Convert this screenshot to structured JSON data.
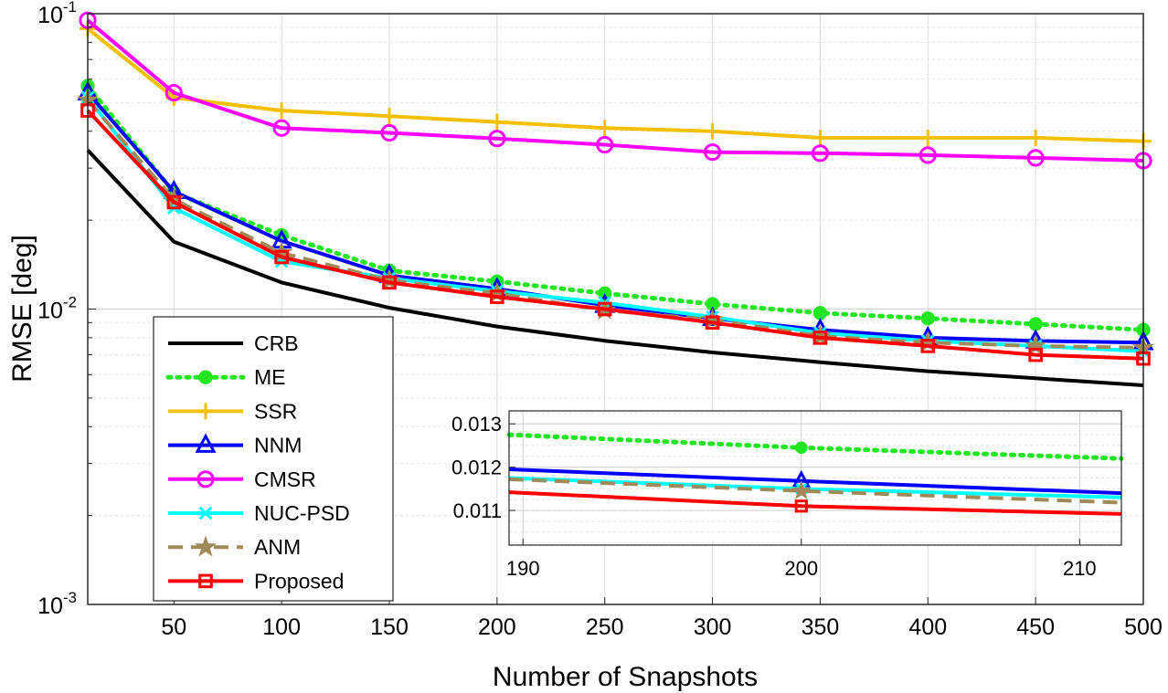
{
  "chart_data": {
    "type": "line",
    "title": "",
    "xlabel": "Number of Snapshots",
    "ylabel": "RMSE [deg]",
    "yscale": "log",
    "xlim": [
      10,
      500
    ],
    "ylim": [
      0.001,
      0.1
    ],
    "grid": true,
    "legend_position": "bottom-left",
    "x": [
      10,
      50,
      100,
      150,
      200,
      250,
      300,
      350,
      400,
      450,
      500
    ],
    "x_tick_labels": [
      "50",
      "100",
      "150",
      "200",
      "250",
      "300",
      "350",
      "400",
      "450",
      "500"
    ],
    "x_tick_values": [
      50,
      100,
      150,
      200,
      250,
      300,
      350,
      400,
      450,
      500
    ],
    "y_tick_labels": [
      {
        "base": "10",
        "exp": "-3",
        "value": 0.001
      },
      {
        "base": "10",
        "exp": "-2",
        "value": 0.01
      },
      {
        "base": "10",
        "exp": "-1",
        "value": 0.1
      }
    ],
    "series": [
      {
        "name": "CRB",
        "color": "#000000",
        "marker": "none",
        "dash": "solid",
        "values": [
          0.0345,
          0.0169,
          0.0123,
          0.0101,
          0.00873,
          0.00781,
          0.00713,
          0.00661,
          0.00616,
          0.00583,
          0.00552
        ]
      },
      {
        "name": "ME",
        "color": "#22e622",
        "marker": "dot",
        "dash": "dotted",
        "values": [
          0.057,
          0.0248,
          0.0178,
          0.0135,
          0.0124,
          0.0113,
          0.0104,
          0.0097,
          0.0093,
          0.0089,
          0.0085
        ]
      },
      {
        "name": "SSR",
        "color": "#f5c000",
        "marker": "plus",
        "dash": "solid",
        "values": [
          0.089,
          0.052,
          0.047,
          0.045,
          0.043,
          0.041,
          0.04,
          0.038,
          0.038,
          0.038,
          0.037
        ]
      },
      {
        "name": "NNM",
        "color": "#0000ff",
        "marker": "triangle",
        "dash": "solid",
        "values": [
          0.054,
          0.025,
          0.017,
          0.013,
          0.0117,
          0.0103,
          0.0093,
          0.0085,
          0.008,
          0.0078,
          0.0077
        ]
      },
      {
        "name": "CMSR",
        "color": "#ff00ff",
        "marker": "circle",
        "dash": "solid",
        "values": [
          0.095,
          0.054,
          0.041,
          0.0395,
          0.0378,
          0.036,
          0.034,
          0.0337,
          0.0332,
          0.0325,
          0.0318
        ]
      },
      {
        "name": "NUC-PSD",
        "color": "#00ffff",
        "marker": "x",
        "dash": "solid",
        "values": [
          0.052,
          0.022,
          0.0145,
          0.0127,
          0.0115,
          0.0105,
          0.0094,
          0.0083,
          0.0078,
          0.0075,
          0.0072
        ]
      },
      {
        "name": "ANM",
        "color": "#a08a5a",
        "marker": "star",
        "dash": "dashed",
        "values": [
          0.051,
          0.0235,
          0.0155,
          0.0125,
          0.0113,
          0.0099,
          0.0092,
          0.0081,
          0.0077,
          0.0075,
          0.0074
        ]
      },
      {
        "name": "Proposed",
        "color": "#ff0000",
        "marker": "square",
        "dash": "solid",
        "values": [
          0.047,
          0.023,
          0.015,
          0.0123,
          0.011,
          0.01,
          0.009,
          0.008,
          0.0075,
          0.007,
          0.0068
        ]
      }
    ],
    "inset": {
      "xlim": [
        189.5,
        211.5
      ],
      "ylim": [
        0.0102,
        0.0133
      ],
      "x_tick_values": [
        190,
        200,
        210
      ],
      "x_tick_labels": [
        "190",
        "200",
        "210"
      ],
      "y_tick_values": [
        0.011,
        0.012,
        0.013
      ],
      "y_tick_labels": [
        "0.011",
        "0.012",
        "0.013"
      ],
      "series": [
        {
          "name": "ME",
          "start": 0.01275,
          "mid": 0.01245,
          "end": 0.0122
        },
        {
          "name": "NNM",
          "start": 0.01195,
          "mid": 0.01168,
          "end": 0.0114
        },
        {
          "name": "NUC-PSD",
          "start": 0.01175,
          "mid": 0.0115,
          "end": 0.0113
        },
        {
          "name": "ANM",
          "start": 0.01172,
          "mid": 0.01145,
          "end": 0.01118
        },
        {
          "name": "Proposed",
          "start": 0.01142,
          "mid": 0.0111,
          "end": 0.01092
        }
      ]
    }
  }
}
